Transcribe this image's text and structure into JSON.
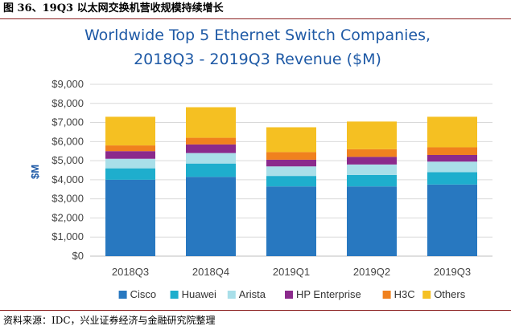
{
  "caption": "图 36、19Q3 以太网交换机营收规模持续增长",
  "source": "资料来源：IDC，兴业证券经济与金融研究院整理",
  "chart_data": {
    "type": "bar",
    "stacked": true,
    "title": [
      "Worldwide Top 5 Ethernet Switch Companies,",
      "2018Q3 - 2019Q3 Revenue ($M)"
    ],
    "ylabel": "$M",
    "ylim": [
      0,
      9000
    ],
    "yticks": [
      "$0",
      "$1,000",
      "$2,000",
      "$3,000",
      "$4,000",
      "$5,000",
      "$6,000",
      "$7,000",
      "$8,000",
      "$9,000"
    ],
    "categories": [
      "2018Q3",
      "2018Q4",
      "2019Q1",
      "2019Q2",
      "2019Q3"
    ],
    "series": [
      {
        "name": "Cisco",
        "color": "#2878c0",
        "values": [
          4000,
          4150,
          3650,
          3650,
          3750
        ]
      },
      {
        "name": "Huawei",
        "color": "#1eaecd",
        "values": [
          600,
          700,
          550,
          600,
          650
        ]
      },
      {
        "name": "Arista",
        "color": "#a9dfe9",
        "values": [
          500,
          550,
          500,
          550,
          550
        ]
      },
      {
        "name": "HP Enterprise",
        "color": "#8b2a8c",
        "values": [
          400,
          450,
          350,
          400,
          350
        ]
      },
      {
        "name": "H3C",
        "color": "#f0811e",
        "values": [
          300,
          350,
          400,
          400,
          400
        ]
      },
      {
        "name": "Others",
        "color": "#f5c022",
        "values": [
          1500,
          1600,
          1300,
          1450,
          1600
        ]
      }
    ],
    "legend_position": "bottom",
    "grid": true
  }
}
